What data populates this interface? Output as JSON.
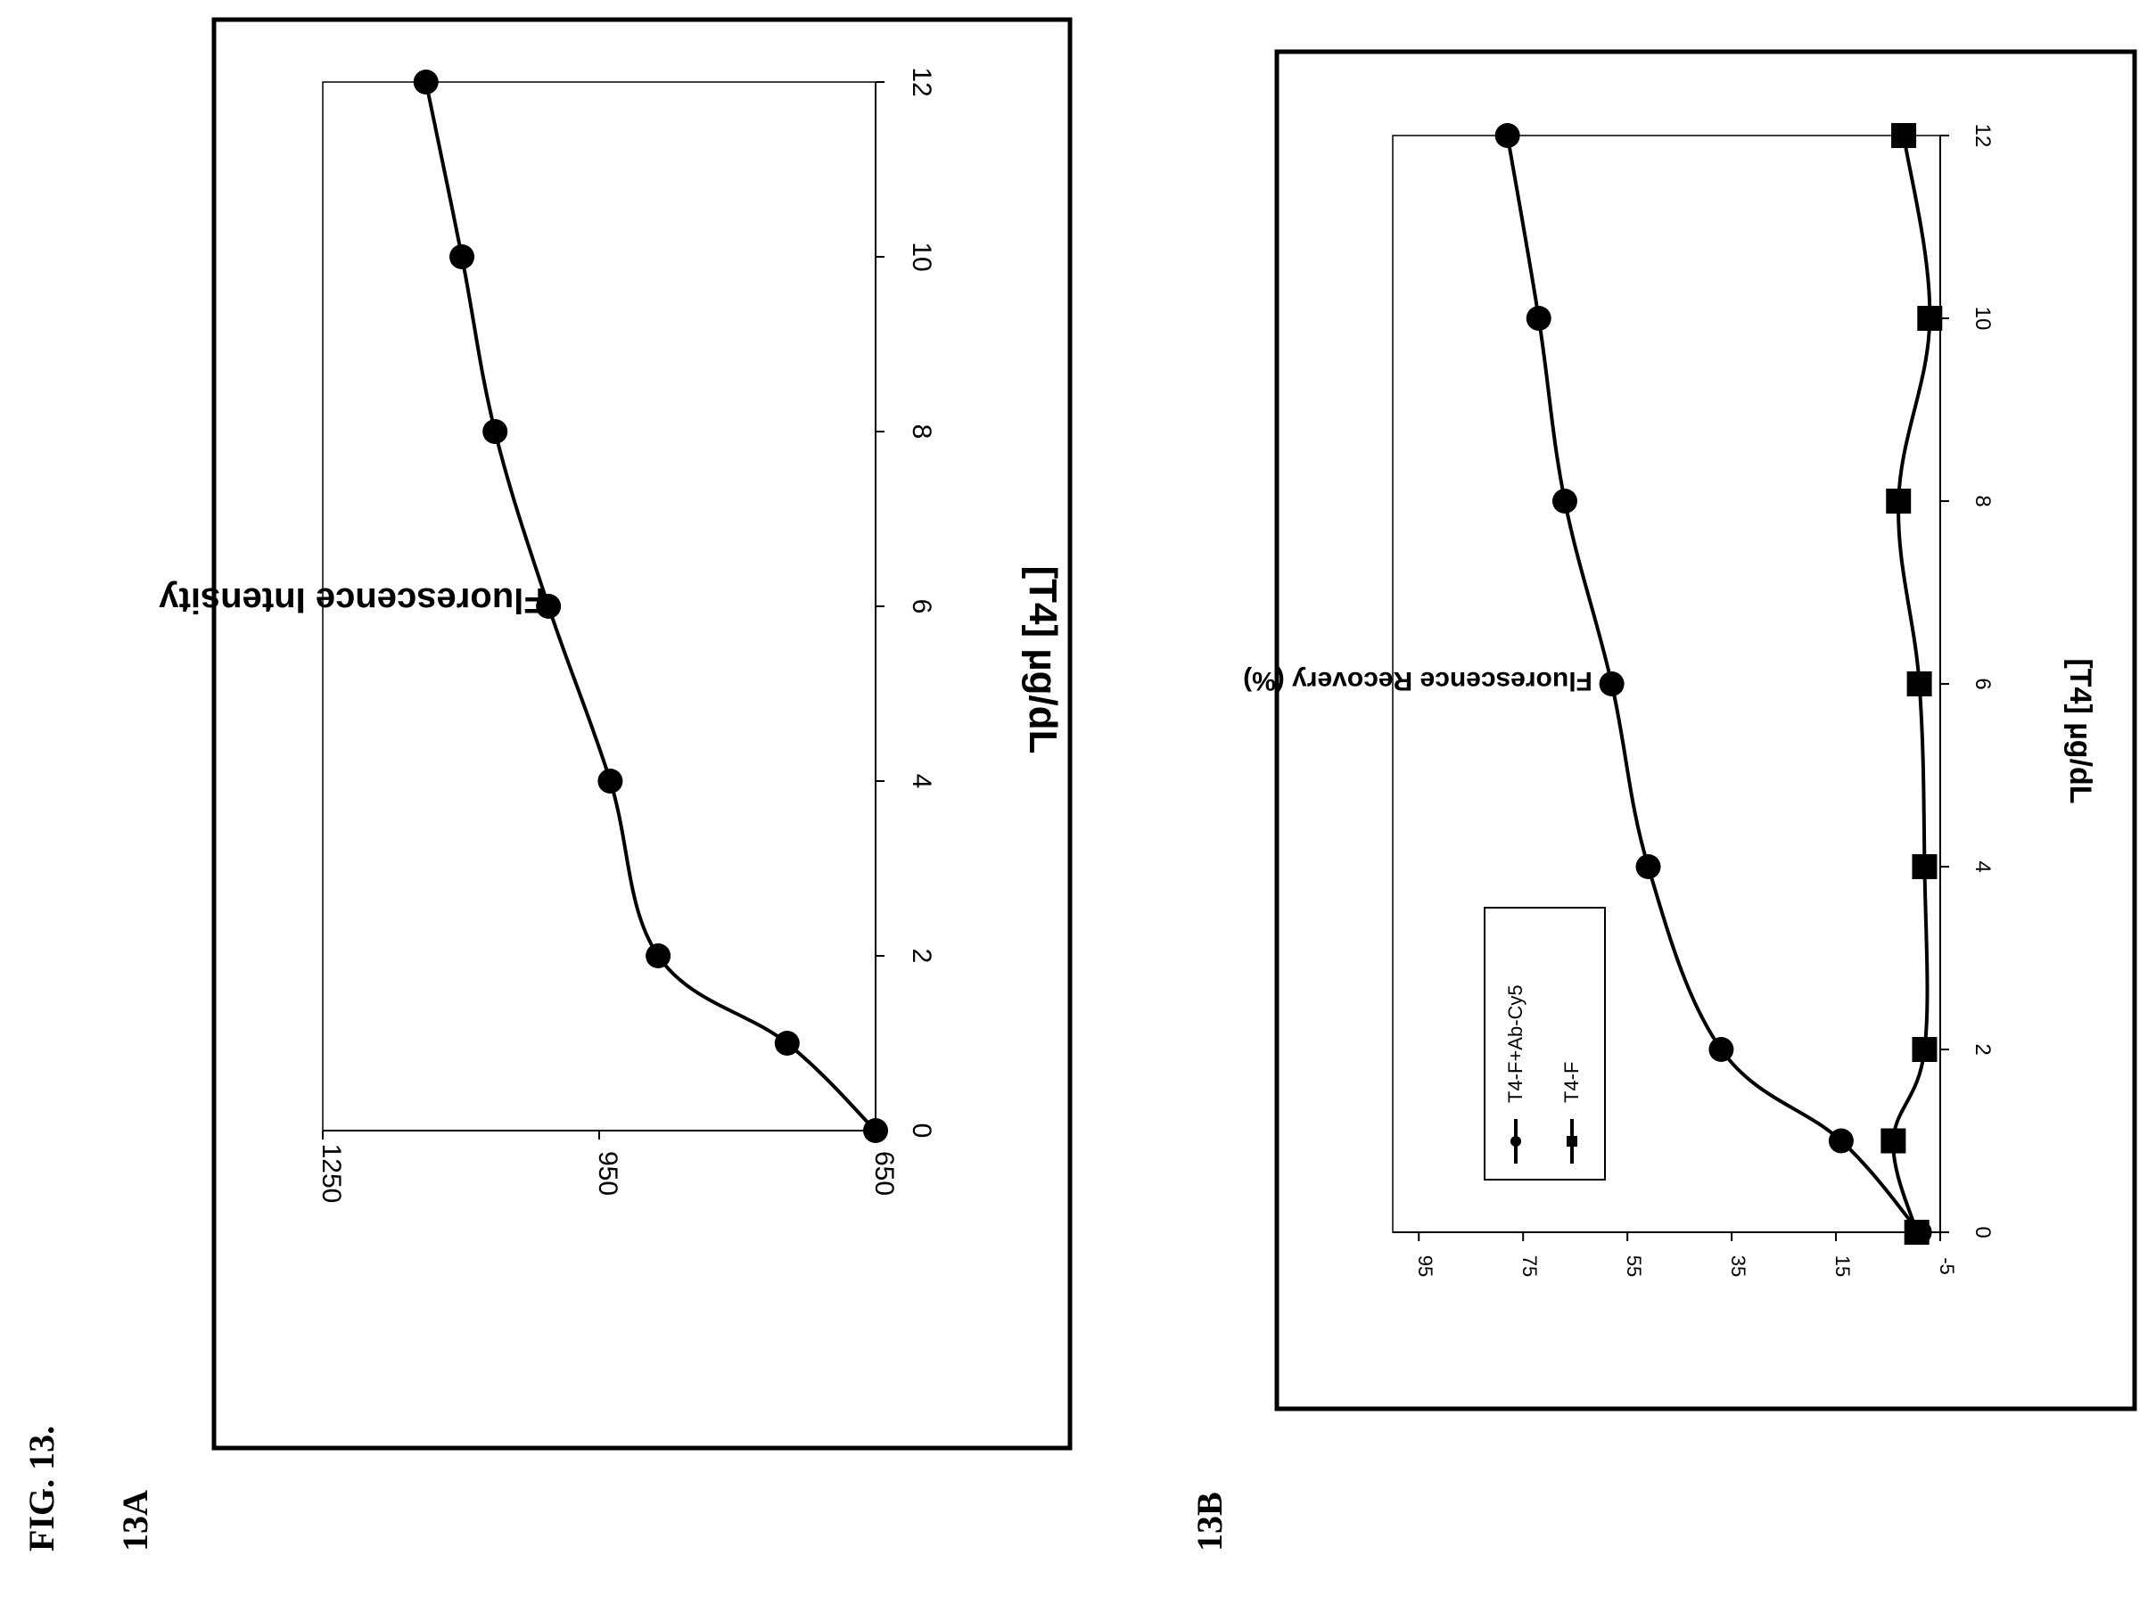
{
  "figure": {
    "label": "FIG. 13.",
    "panel_a_label": "13A",
    "panel_b_label": "13B"
  },
  "colors": {
    "ink": "#000000",
    "background": "#ffffff"
  },
  "chart_data": [
    {
      "id": "13A",
      "type": "line",
      "orientation": "rotated-90",
      "title": "",
      "xlabel": "[T4] µg/dL",
      "ylabel": "Fluorescence Intensity",
      "xlim": [
        0,
        12
      ],
      "ylim": [
        650,
        1250
      ],
      "xticks": [
        0,
        2,
        4,
        6,
        8,
        10,
        12
      ],
      "yticks": [
        650,
        950,
        1250
      ],
      "grid": false,
      "legend": "none",
      "series": [
        {
          "marker": "circle",
          "x": [
            0,
            1,
            2,
            4,
            6,
            8,
            10,
            12
          ],
          "y": [
            650,
            746,
            886,
            938,
            1005,
            1063,
            1099,
            1138
          ]
        }
      ]
    },
    {
      "id": "13B",
      "type": "line",
      "orientation": "rotated-90",
      "title": "",
      "xlabel": "[T4] µg/dL",
      "ylabel": "Fluorescence Recovery (%)",
      "xlim": [
        0,
        12
      ],
      "ylim": [
        -5,
        100
      ],
      "xticks": [
        0,
        2,
        4,
        6,
        8,
        10,
        12
      ],
      "yticks": [
        -5,
        15,
        35,
        55,
        75,
        95
      ],
      "grid": false,
      "legend": "bottom-left",
      "series": [
        {
          "name": "T4-F+Ab-Cy5",
          "marker": "circle",
          "x": [
            0,
            1,
            2,
            4,
            6,
            8,
            10,
            12
          ],
          "y": [
            -1,
            14,
            37,
            51,
            58,
            67,
            72,
            78
          ]
        },
        {
          "name": "T4-F",
          "marker": "square",
          "x": [
            0,
            1,
            2,
            4,
            6,
            8,
            10,
            12
          ],
          "y": [
            -0.5,
            4,
            -2,
            -2,
            -1,
            3,
            -3,
            2
          ]
        }
      ]
    }
  ]
}
